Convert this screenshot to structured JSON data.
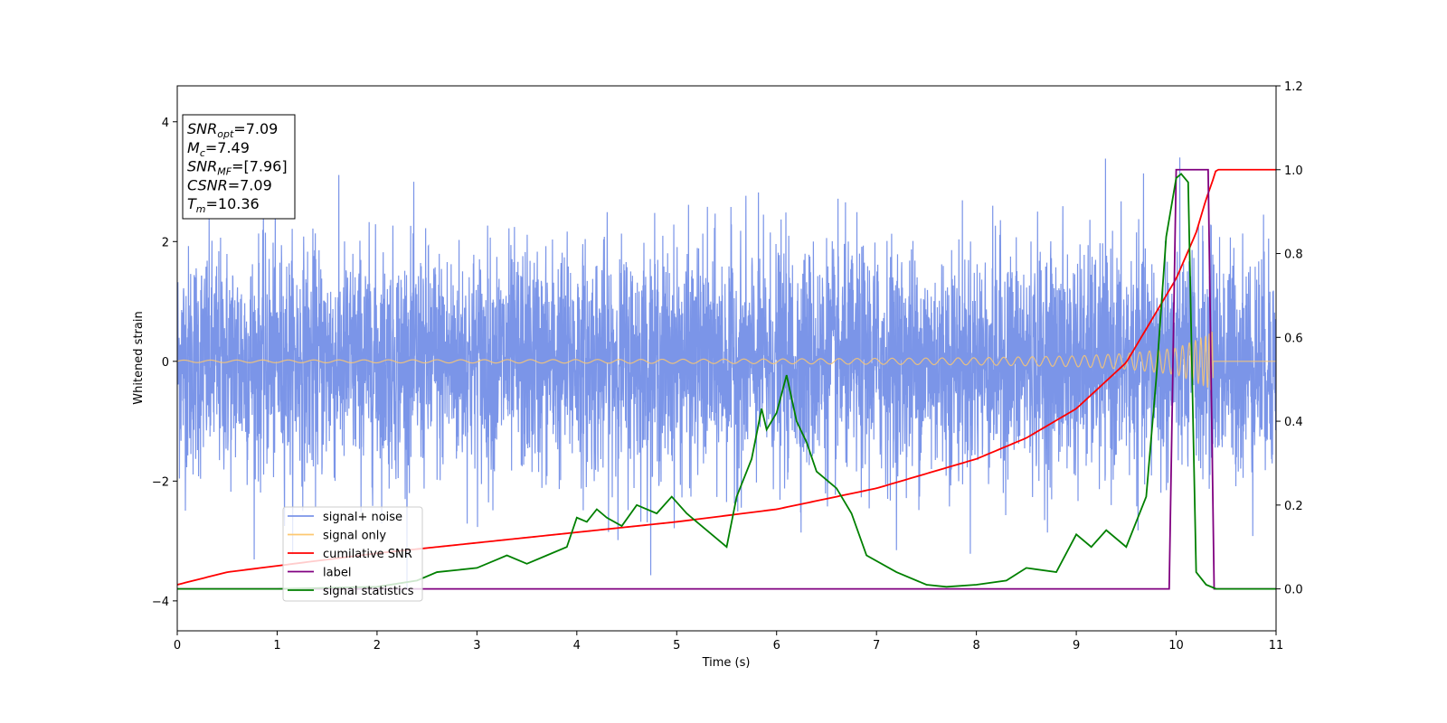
{
  "chart_data": {
    "type": "line",
    "xlabel": "Time (s)",
    "ylabel": "Whitened strain",
    "y2label": "",
    "xlim": [
      0,
      11
    ],
    "ylim": [
      -4.5,
      4.6
    ],
    "y2lim": [
      -0.1,
      1.2
    ],
    "x_ticks": [
      "0",
      "1",
      "2",
      "3",
      "4",
      "5",
      "6",
      "7",
      "8",
      "9",
      "10",
      "11"
    ],
    "y_ticks": [
      "−4",
      "−2",
      "0",
      "2",
      "4"
    ],
    "y_tick_values": [
      -4,
      -2,
      0,
      2,
      4
    ],
    "y2_ticks": [
      "0.0",
      "0.2",
      "0.4",
      "0.6",
      "0.8",
      "1.0",
      "1.2"
    ],
    "y2_tick_values": [
      0.0,
      0.2,
      0.4,
      0.6,
      0.8,
      1.0,
      1.2
    ],
    "legend_position": "lower-left",
    "annotation": {
      "lines": [
        {
          "main": "SNR",
          "sub": "opt",
          "rest": "=7.09"
        },
        {
          "main": "M",
          "sub": "c",
          "rest": "=7.49"
        },
        {
          "main": "SNR",
          "sub": "MF",
          "rest": "=[7.96]"
        },
        {
          "main": "CSNR",
          "sub": "",
          "rest": "=7.09"
        },
        {
          "main": "T",
          "sub": "m",
          "rest": "=10.36"
        }
      ]
    },
    "series": [
      {
        "name": "signal+ noise",
        "color": "#7b95e8",
        "axis": "left",
        "description": "whitened noise, std ~0.9, peaks to about ±4"
      },
      {
        "name": "signal only",
        "color": "#fdc870",
        "axis": "left",
        "chirp_amplitude": {
          "x": [
            0,
            2,
            4,
            6,
            8,
            9,
            9.5,
            10,
            10.3,
            10.36,
            10.4
          ],
          "y": [
            0.02,
            0.025,
            0.03,
            0.04,
            0.06,
            0.09,
            0.13,
            0.22,
            0.42,
            0.5,
            0
          ]
        }
      },
      {
        "name": "cumilative SNR",
        "color": "#ff0000",
        "axis": "right",
        "x": [
          0,
          0.5,
          1,
          2,
          3,
          4,
          5,
          6,
          7,
          8,
          8.5,
          9,
          9.5,
          10,
          10.2,
          10.3,
          10.36,
          10.4,
          11
        ],
        "y": [
          0.01,
          0.04,
          0.055,
          0.085,
          0.11,
          0.135,
          0.16,
          0.19,
          0.24,
          0.31,
          0.36,
          0.43,
          0.54,
          0.74,
          0.85,
          0.93,
          0.97,
          1.0,
          1.0
        ]
      },
      {
        "name": "label",
        "color": "#800080",
        "axis": "right",
        "x": [
          0,
          9.93,
          10.0,
          10.32,
          10.38,
          11
        ],
        "y": [
          0,
          0,
          1.0,
          1.0,
          0,
          0
        ]
      },
      {
        "name": "signal statistics",
        "color": "#008000",
        "axis": "right",
        "x": [
          0,
          1,
          2,
          2.4,
          2.6,
          3.0,
          3.2,
          3.3,
          3.5,
          3.7,
          3.9,
          4.0,
          4.1,
          4.2,
          4.3,
          4.45,
          4.6,
          4.8,
          4.95,
          5.1,
          5.2,
          5.4,
          5.5,
          5.6,
          5.75,
          5.85,
          5.9,
          6.0,
          6.1,
          6.2,
          6.3,
          6.4,
          6.6,
          6.75,
          6.9,
          7.2,
          7.5,
          7.7,
          8.0,
          8.3,
          8.5,
          8.8,
          9.0,
          9.15,
          9.3,
          9.5,
          9.7,
          9.8,
          9.9,
          10.0,
          10.05,
          10.12,
          10.2,
          10.3,
          10.4,
          11
        ],
        "y": [
          0,
          0,
          0.005,
          0.02,
          0.04,
          0.05,
          0.07,
          0.08,
          0.06,
          0.08,
          0.1,
          0.17,
          0.16,
          0.19,
          0.17,
          0.15,
          0.2,
          0.18,
          0.22,
          0.18,
          0.16,
          0.12,
          0.1,
          0.22,
          0.31,
          0.43,
          0.38,
          0.42,
          0.51,
          0.4,
          0.35,
          0.28,
          0.24,
          0.18,
          0.08,
          0.04,
          0.01,
          0.005,
          0.01,
          0.02,
          0.05,
          0.04,
          0.13,
          0.1,
          0.14,
          0.1,
          0.22,
          0.5,
          0.84,
          0.98,
          0.99,
          0.97,
          0.04,
          0.01,
          0.0,
          0.0
        ]
      }
    ]
  }
}
